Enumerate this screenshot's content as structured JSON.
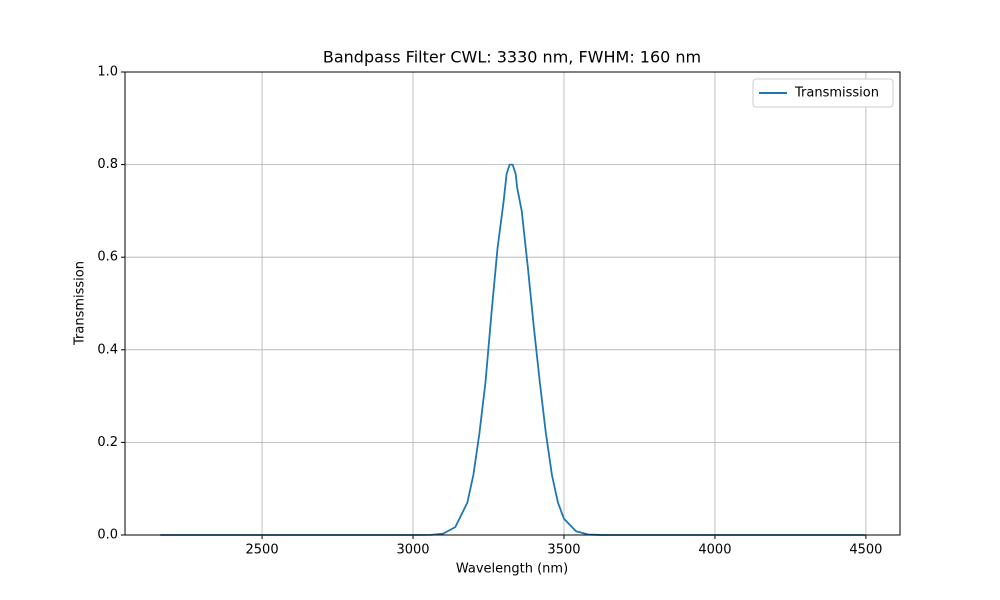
{
  "chart_data": {
    "type": "line",
    "title": "Bandpass Filter CWL: 3330 nm, FWHM: 160 nm",
    "xlabel": "Wavelength (nm)",
    "ylabel": "Transmission",
    "x": [
      2163,
      3000,
      3060,
      3100,
      3140,
      3180,
      3200,
      3220,
      3240,
      3260,
      3280,
      3300,
      3310,
      3320,
      3330,
      3340,
      3345,
      3360,
      3380,
      3400,
      3420,
      3440,
      3460,
      3480,
      3500,
      3540,
      3580,
      3620,
      4000,
      4497
    ],
    "series": [
      {
        "name": "Transmission",
        "color": "#1f77b4",
        "values": [
          0,
          0,
          0.0003,
          0.003,
          0.017,
          0.07,
          0.13,
          0.22,
          0.33,
          0.48,
          0.62,
          0.72,
          0.78,
          0.8,
          0.8,
          0.78,
          0.75,
          0.7,
          0.58,
          0.45,
          0.33,
          0.22,
          0.13,
          0.07,
          0.035,
          0.008,
          0.001,
          0.0001,
          0,
          0
        ]
      }
    ],
    "xlim": [
      2046,
      4613
    ],
    "ylim": [
      0,
      1
    ],
    "xticks": [
      2500,
      3000,
      3500,
      4000,
      4500
    ],
    "yticks": [
      {
        "value": 0,
        "label": "0.0"
      },
      {
        "value": 0.2,
        "label": "0.2"
      },
      {
        "value": 0.4,
        "label": "0.4"
      },
      {
        "value": 0.6,
        "label": "0.6"
      },
      {
        "value": 0.8,
        "label": "0.8"
      },
      {
        "value": 1,
        "label": "1.0"
      }
    ],
    "grid": true,
    "legend": "upper right"
  }
}
